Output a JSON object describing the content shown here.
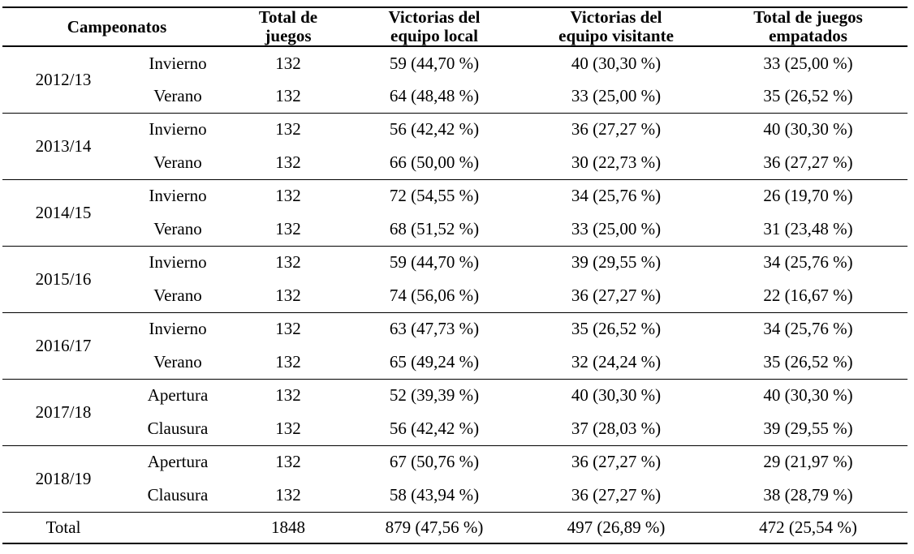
{
  "table": {
    "headers": {
      "campeonatos": "Campeonatos",
      "total_juegos": [
        "Total de",
        "juegos"
      ],
      "victorias_local": [
        "Victorias del",
        "equipo local"
      ],
      "victorias_visitante": [
        "Victorias del",
        "equipo visitante"
      ],
      "total_empatados": [
        "Total de juegos",
        "empatados"
      ]
    },
    "groups": [
      {
        "year": "2012/13",
        "rows": [
          {
            "season": "Invierno",
            "total": "132",
            "local": "59 (44,70 %)",
            "visitante": "40 (30,30 %)",
            "empatados": "33 (25,00 %)"
          },
          {
            "season": "Verano",
            "total": "132",
            "local": "64 (48,48 %)",
            "visitante": "33 (25,00 %)",
            "empatados": "35 (26,52 %)"
          }
        ]
      },
      {
        "year": "2013/14",
        "rows": [
          {
            "season": "Invierno",
            "total": "132",
            "local": "56 (42,42 %)",
            "visitante": "36 (27,27 %)",
            "empatados": "40 (30,30 %)"
          },
          {
            "season": "Verano",
            "total": "132",
            "local": "66 (50,00 %)",
            "visitante": "30 (22,73 %)",
            "empatados": "36 (27,27 %)"
          }
        ]
      },
      {
        "year": "2014/15",
        "rows": [
          {
            "season": "Invierno",
            "total": "132",
            "local": "72 (54,55 %)",
            "visitante": "34 (25,76 %)",
            "empatados": "26 (19,70 %)"
          },
          {
            "season": "Verano",
            "total": "132",
            "local": "68 (51,52 %)",
            "visitante": "33 (25,00 %)",
            "empatados": "31 (23,48 %)"
          }
        ]
      },
      {
        "year": "2015/16",
        "rows": [
          {
            "season": "Invierno",
            "total": "132",
            "local": "59 (44,70 %)",
            "visitante": "39 (29,55 %)",
            "empatados": "34 (25,76 %)"
          },
          {
            "season": "Verano",
            "total": "132",
            "local": "74 (56,06 %)",
            "visitante": "36 (27,27 %)",
            "empatados": "22 (16,67 %)"
          }
        ]
      },
      {
        "year": "2016/17",
        "rows": [
          {
            "season": "Invierno",
            "total": "132",
            "local": "63 (47,73 %)",
            "visitante": "35 (26,52 %)",
            "empatados": "34 (25,76 %)"
          },
          {
            "season": "Verano",
            "total": "132",
            "local": "65 (49,24 %)",
            "visitante": "32 (24,24 %)",
            "empatados": "35 (26,52 %)"
          }
        ]
      },
      {
        "year": "2017/18",
        "rows": [
          {
            "season": "Apertura",
            "total": "132",
            "local": "52 (39,39 %)",
            "visitante": "40 (30,30 %)",
            "empatados": "40 (30,30 %)"
          },
          {
            "season": "Clausura",
            "total": "132",
            "local": "56 (42,42 %)",
            "visitante": "37 (28,03 %)",
            "empatados": "39 (29,55 %)"
          }
        ]
      },
      {
        "year": "2018/19",
        "rows": [
          {
            "season": "Apertura",
            "total": "132",
            "local": "67 (50,76 %)",
            "visitante": "36 (27,27 %)",
            "empatados": "29 (21,97 %)"
          },
          {
            "season": "Clausura",
            "total": "132",
            "local": "58 (43,94 %)",
            "visitante": "36 (27,27 %)",
            "empatados": "38 (28,79 %)"
          }
        ]
      }
    ],
    "total_row": {
      "label": "Total",
      "total": "1848",
      "local": "879 (47,56 %)",
      "visitante": "497 (26,89 %)",
      "empatados": "472 (25,54 %)"
    }
  }
}
